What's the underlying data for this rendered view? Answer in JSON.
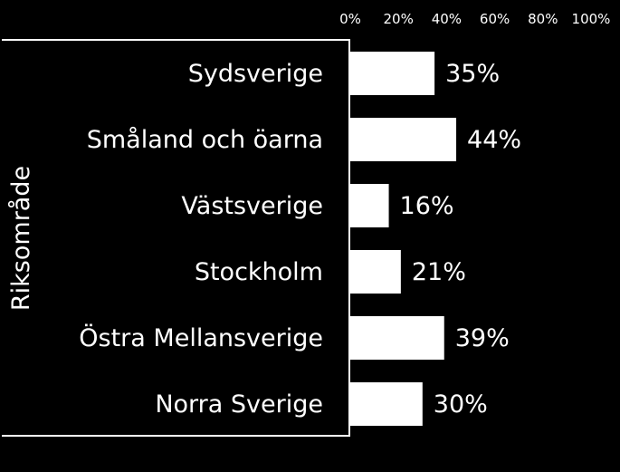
{
  "chart_data": {
    "type": "bar",
    "orientation": "horizontal",
    "ylabel": "Riksområde",
    "categories": [
      "Sydsverige",
      "Småland och öarna",
      "Västsverige",
      "Stockholm",
      "Östra Mellansverige",
      "Norra Sverige"
    ],
    "values": [
      35,
      44,
      16,
      21,
      39,
      30
    ],
    "value_labels": [
      "35%",
      "44%",
      "16%",
      "21%",
      "39%",
      "30%"
    ],
    "xlim": [
      0,
      100
    ],
    "x_ticks": [
      0,
      20,
      40,
      60,
      80,
      100
    ],
    "x_tick_labels": [
      "0%",
      "20%",
      "40%",
      "60%",
      "80%",
      "100%"
    ],
    "x_axis_position": "top",
    "grid": false,
    "colors": {
      "background": "#000000",
      "bar": "#ffffff",
      "text": "#ffffff"
    }
  }
}
